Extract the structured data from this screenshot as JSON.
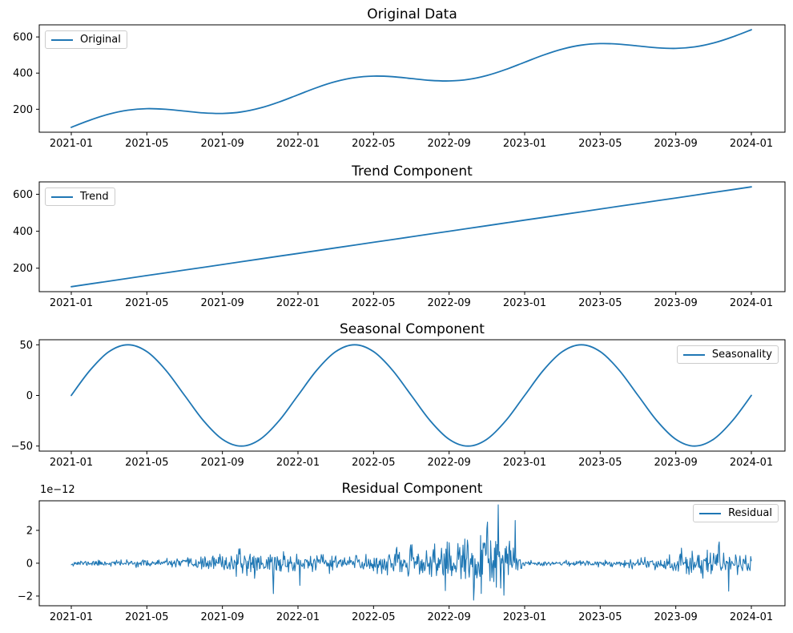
{
  "figure": {
    "background": "#ffffff",
    "accent_color": "#1f77b4",
    "spine_color": "#000000"
  },
  "x_axis": {
    "months": [
      0,
      1,
      2,
      3,
      4,
      5,
      6,
      7,
      8,
      9,
      10,
      11,
      12,
      13,
      14,
      15,
      16,
      17,
      18,
      19,
      20,
      21,
      22,
      23,
      24,
      25,
      26,
      27,
      28,
      29,
      30,
      31,
      32,
      33,
      34,
      35,
      36
    ],
    "tick_months": [
      0,
      4,
      8,
      12,
      16,
      20,
      24,
      28,
      32,
      36
    ],
    "tick_labels": [
      "2021-01",
      "2021-05",
      "2021-09",
      "2022-01",
      "2022-05",
      "2022-09",
      "2023-01",
      "2023-05",
      "2023-09",
      "2024-01"
    ]
  },
  "chart_data": [
    {
      "type": "line",
      "title": "Original Data",
      "legend": {
        "label": "Original",
        "position": "upper-left"
      },
      "smooth": true,
      "ylim": [
        73,
        667
      ],
      "yticks": [
        200,
        400,
        600
      ],
      "values": [
        100,
        140,
        173.3,
        195,
        203.3,
        200,
        190,
        180,
        176.7,
        185,
        206.7,
        240,
        280,
        320,
        353.3,
        375,
        383.3,
        380,
        370,
        360,
        356.7,
        365,
        386.7,
        420,
        460,
        500,
        533.3,
        555,
        563.3,
        560,
        550,
        540,
        536.7,
        545,
        566.7,
        600,
        640
      ]
    },
    {
      "type": "line",
      "title": "Trend Component",
      "legend": {
        "label": "Trend",
        "position": "upper-left"
      },
      "smooth": false,
      "ylim": [
        73,
        667
      ],
      "yticks": [
        200,
        400,
        600
      ],
      "values": [
        100,
        115,
        130,
        145,
        160,
        175,
        190,
        205,
        220,
        235,
        250,
        265,
        280,
        295,
        310,
        325,
        340,
        355,
        370,
        385,
        400,
        415,
        430,
        445,
        460,
        475,
        490,
        505,
        520,
        535,
        550,
        565,
        580,
        595,
        610,
        625,
        640
      ]
    },
    {
      "type": "line",
      "title": "Seasonal Component",
      "legend": {
        "label": "Seasonality",
        "position": "upper-right"
      },
      "smooth": true,
      "ylim": [
        -55,
        55
      ],
      "yticks": [
        -50,
        0,
        50
      ],
      "values": [
        0,
        25,
        43.3,
        50,
        43.3,
        25,
        0,
        -25,
        -43.3,
        -50,
        -43.3,
        -25,
        0,
        25,
        43.3,
        50,
        43.3,
        25,
        0,
        -25,
        -43.3,
        -50,
        -43.3,
        -25,
        0,
        25,
        43.3,
        50,
        43.3,
        25,
        0,
        -25,
        -43.3,
        -50,
        -43.3,
        -25,
        0
      ]
    },
    {
      "type": "noise-line",
      "title": "Residual Component",
      "legend": {
        "label": "Residual",
        "position": "upper-right"
      },
      "offset_label": "1e−12",
      "smooth": false,
      "ylim": [
        -2.59,
        3.8
      ],
      "yticks": [
        -2,
        0,
        2
      ],
      "noise": {
        "unit": "1e-12",
        "seed": 11,
        "points_per_month": 30,
        "std_by_month": [
          0.08,
          0.08,
          0.09,
          0.09,
          0.1,
          0.11,
          0.13,
          0.18,
          0.25,
          0.32,
          0.38,
          0.32,
          0.28,
          0.24,
          0.26,
          0.28,
          0.3,
          0.33,
          0.4,
          0.5,
          0.62,
          0.75,
          0.9,
          0.7,
          0.07,
          0.07,
          0.07,
          0.08,
          0.09,
          0.11,
          0.16,
          0.22,
          0.3,
          0.4,
          0.48,
          0.45,
          0.3
        ],
        "spikes": [
          {
            "month": 22.6,
            "value": 3.55
          },
          {
            "month": 23.5,
            "value": 2.6
          },
          {
            "month": 22.0,
            "value": 2.1
          },
          {
            "month": 21.3,
            "value": -2.25
          },
          {
            "month": 22.9,
            "value": -1.95
          },
          {
            "month": 10.7,
            "value": -1.85
          },
          {
            "month": 12.1,
            "value": -1.35
          },
          {
            "month": 19.9,
            "value": 1.3
          },
          {
            "month": 34.3,
            "value": 1.3
          },
          {
            "month": 34.8,
            "value": -1.7
          }
        ]
      }
    }
  ]
}
